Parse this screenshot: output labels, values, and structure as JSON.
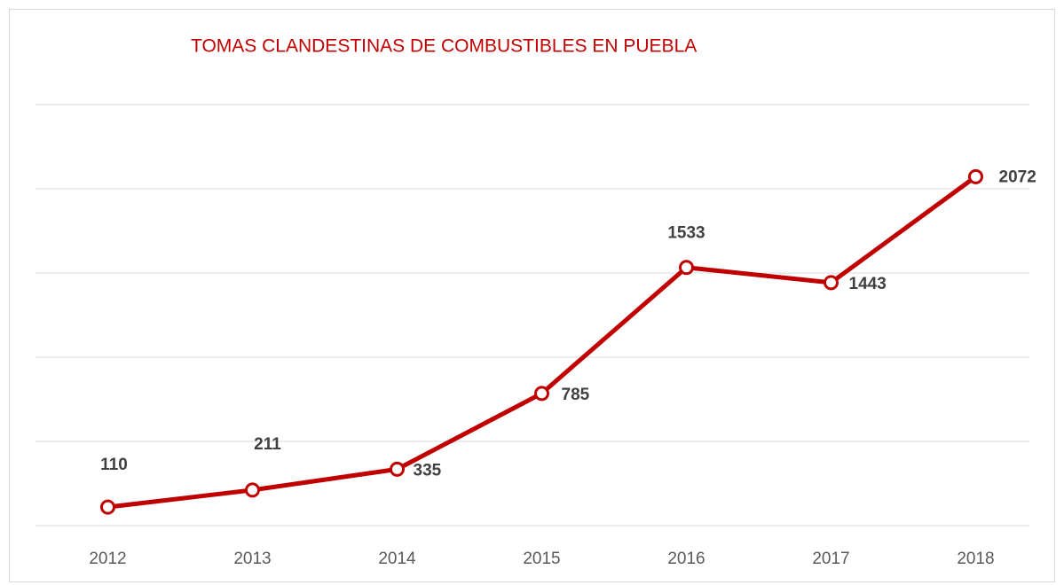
{
  "chart_data": {
    "type": "line",
    "title": "TOMAS CLANDESTINAS DE COMBUSTIBLES EN PUEBLA",
    "categories": [
      "2012",
      "2013",
      "2014",
      "2015",
      "2016",
      "2017",
      "2018"
    ],
    "series": [
      {
        "name": "Tomas clandestinas",
        "color": "#c00000",
        "values": [
          110,
          211,
          335,
          785,
          1533,
          1443,
          2072
        ]
      }
    ],
    "ylim": [
      0,
      2500
    ],
    "yticks": [
      0,
      500,
      1000,
      1500,
      2000,
      2500
    ],
    "grid": true
  }
}
